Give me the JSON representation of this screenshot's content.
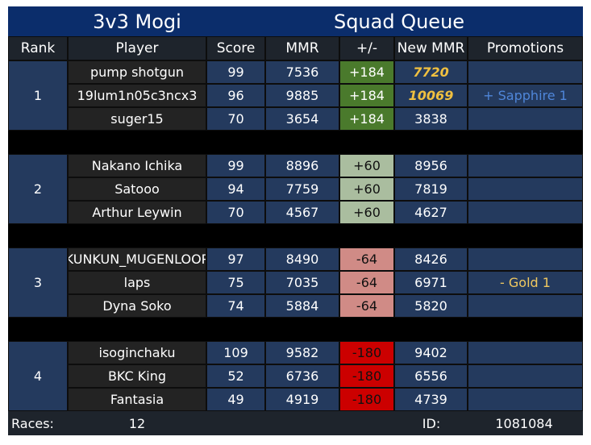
{
  "title_left": "3v3 Mogi",
  "title_right": "Squad Queue",
  "headers": [
    "Rank",
    "Player",
    "Score",
    "MMR",
    "+/-",
    "New MMR",
    "Promotions"
  ],
  "groups": [
    {
      "rank": 1,
      "delta_color": "#4a7a2c",
      "delta_text_color": "#ffffff",
      "players": [
        {
          "name": "pump shotgun",
          "score": 99,
          "mmr": 7536,
          "delta": "+184",
          "new_mmr": 7720,
          "highlight": true
        },
        {
          "name": "19lum1n05c3ncx3",
          "score": 96,
          "mmr": 9885,
          "delta": "+184",
          "new_mmr": 10069,
          "highlight": true,
          "promotion": "+ Sapphire 1",
          "promotion_color": "#4f86d9"
        },
        {
          "name": "suger15",
          "score": 70,
          "mmr": 3654,
          "delta": "+184",
          "new_mmr": 3838
        }
      ]
    },
    {
      "rank": 2,
      "delta_color": "#aabd9f",
      "delta_text_color": "#111111",
      "players": [
        {
          "name": "Nakano Ichika",
          "score": 99,
          "mmr": 8896,
          "delta": "+60",
          "new_mmr": 8956
        },
        {
          "name": "Satooo",
          "score": 94,
          "mmr": 7759,
          "delta": "+60",
          "new_mmr": 7819
        },
        {
          "name": "Arthur Leywin",
          "score": 70,
          "mmr": 4567,
          "delta": "+60",
          "new_mmr": 4627
        }
      ]
    },
    {
      "rank": 3,
      "delta_color": "#d08b86",
      "delta_text_color": "#111111",
      "players": [
        {
          "name": "KUNKUN_MUGENLOOP",
          "score": 97,
          "mmr": 8490,
          "delta": "-64",
          "new_mmr": 8426
        },
        {
          "name": "laps",
          "score": 75,
          "mmr": 7035,
          "delta": "-64",
          "new_mmr": 6971,
          "promotion": "- Gold 1",
          "promotion_color": "#f0c860"
        },
        {
          "name": "Dyna Soko",
          "score": 74,
          "mmr": 5884,
          "delta": "-64",
          "new_mmr": 5820
        }
      ]
    },
    {
      "rank": 4,
      "delta_color": "#cc0000",
      "delta_text_color": "#111111",
      "players": [
        {
          "name": "isoginchaku",
          "score": 109,
          "mmr": 9582,
          "delta": "-180",
          "new_mmr": 9402
        },
        {
          "name": "BKC King",
          "score": 52,
          "mmr": 6736,
          "delta": "-180",
          "new_mmr": 6556
        },
        {
          "name": "Fantasia",
          "score": 49,
          "mmr": 4919,
          "delta": "-180",
          "new_mmr": 4739
        }
      ]
    }
  ],
  "footer": {
    "races_label": "Races:",
    "races": 12,
    "id_label": "ID:",
    "id": 1081084
  }
}
